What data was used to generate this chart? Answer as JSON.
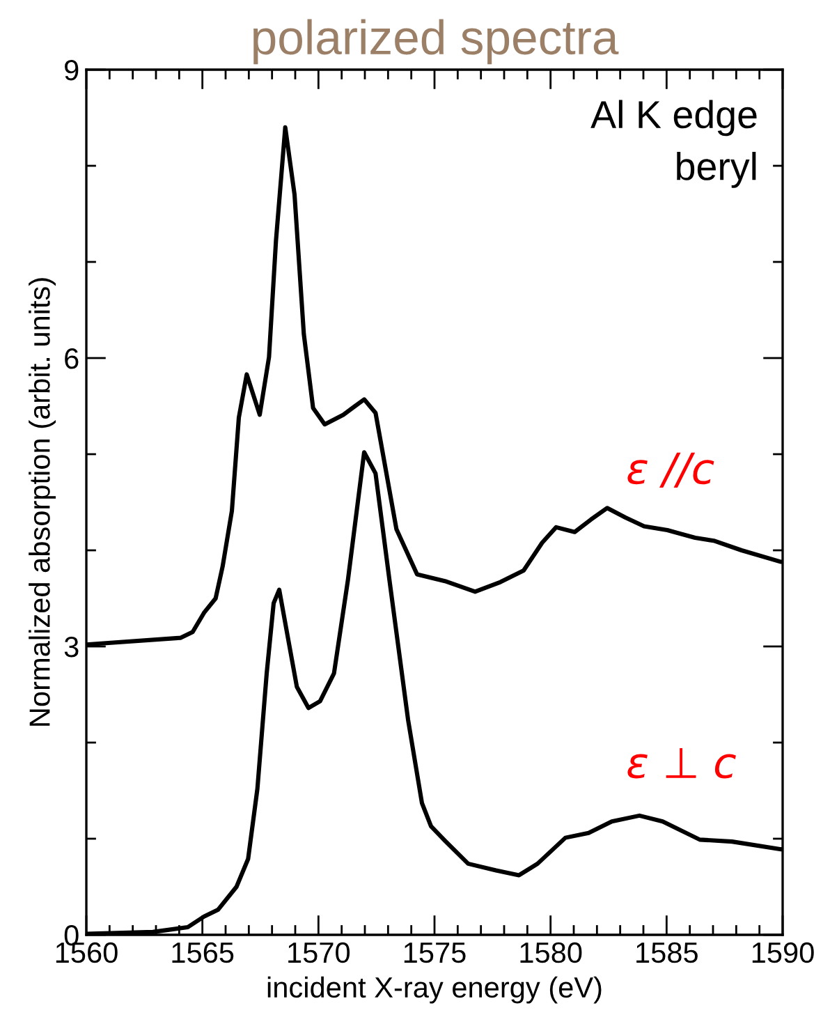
{
  "chart_data": {
    "type": "line",
    "title": "polarized spectra",
    "xlabel": "incident X-ray energy (eV)",
    "ylabel": "Normalized absorption (arbit. units)",
    "annotations": [
      "Al K edge",
      "beryl",
      "ε //c",
      "ε ⊥ c"
    ],
    "series": [
      {
        "color": "#000000",
        "x": [
          1560,
          1564.07,
          1564.58,
          1565.07,
          1565.57,
          1565.87,
          1566.27,
          1566.57,
          1566.91,
          1567.47,
          1567.87,
          1568.17,
          1568.57,
          1568.97,
          1569.37,
          1569.77,
          1570.27,
          1571.07,
          1571.97,
          1572.46,
          1573.36,
          1574.25,
          1575.45,
          1576.75,
          1577.84,
          1578.84,
          1579.64,
          1580.24,
          1581.04,
          1581.74,
          1582.44,
          1583.23,
          1584.03,
          1585.03,
          1586.23,
          1587.03,
          1588.23,
          1589.93,
          1590
        ],
        "values": [
          3.02,
          3.09,
          3.15,
          3.35,
          3.5,
          3.83,
          4.41,
          5.38,
          5.83,
          5.41,
          6.01,
          7.22,
          8.4,
          7.7,
          6.25,
          5.48,
          5.31,
          5.41,
          5.57,
          5.43,
          4.22,
          3.75,
          3.68,
          3.57,
          3.67,
          3.79,
          4.08,
          4.24,
          4.19,
          4.32,
          4.44,
          4.34,
          4.25,
          4.21,
          4.13,
          4.1,
          4.0,
          3.88,
          3.88
        ]
      },
      {
        "color": "#000000",
        "x": [
          1560,
          1562.87,
          1564.37,
          1565.07,
          1565.67,
          1566.47,
          1566.97,
          1567.37,
          1567.77,
          1568.07,
          1568.31,
          1568.67,
          1569.07,
          1569.57,
          1570.07,
          1570.67,
          1571.27,
          1571.97,
          1572.46,
          1573.06,
          1573.86,
          1574.46,
          1574.85,
          1575.45,
          1576.45,
          1577.65,
          1578.64,
          1579.44,
          1580.64,
          1581.64,
          1582.64,
          1583.83,
          1584.83,
          1586.43,
          1587.82,
          1589.93,
          1590
        ],
        "values": [
          0.01,
          0.03,
          0.08,
          0.19,
          0.26,
          0.5,
          0.79,
          1.52,
          2.72,
          3.45,
          3.59,
          3.11,
          2.58,
          2.36,
          2.43,
          2.72,
          3.69,
          5.02,
          4.8,
          3.69,
          2.24,
          1.37,
          1.13,
          0.98,
          0.74,
          0.67,
          0.62,
          0.74,
          1.01,
          1.06,
          1.18,
          1.24,
          1.18,
          0.99,
          0.97,
          0.89,
          0.89
        ]
      }
    ],
    "xlim": [
      1560,
      1590
    ],
    "ylim": [
      0,
      9
    ],
    "xticks": [
      1560,
      {
        "value": 1561,
        "label": null
      },
      {
        "value": 1562,
        "label": null
      },
      {
        "value": 1563,
        "label": null
      },
      {
        "value": 1564,
        "label": null
      },
      1565,
      {
        "value": 1566,
        "label": null
      },
      {
        "value": 1567,
        "label": null
      },
      {
        "value": 1568,
        "label": null
      },
      {
        "value": 1569,
        "label": null
      },
      1570,
      {
        "value": 1571,
        "label": null
      },
      {
        "value": 1572,
        "label": null
      },
      {
        "value": 1573,
        "label": null
      },
      {
        "value": 1574,
        "label": null
      },
      1575,
      {
        "value": 1576,
        "label": null
      },
      {
        "value": 1577,
        "label": null
      },
      {
        "value": 1578,
        "label": null
      },
      {
        "value": 1579,
        "label": null
      },
      1580,
      {
        "value": 1581,
        "label": null
      },
      {
        "value": 1582,
        "label": null
      },
      {
        "value": 1583,
        "label": null
      },
      {
        "value": 1584,
        "label": null
      },
      1585,
      {
        "value": 1586,
        "label": null
      },
      {
        "value": 1587,
        "label": null
      },
      {
        "value": 1588,
        "label": null
      },
      {
        "value": 1589,
        "label": null
      },
      1590
    ],
    "yticks": [
      0,
      {
        "value": 1,
        "label": null
      },
      {
        "value": 2,
        "label": null
      },
      3,
      {
        "value": 4,
        "label": null
      },
      {
        "value": 5,
        "label": null
      },
      6,
      {
        "value": 7,
        "label": null
      },
      {
        "value": 8,
        "label": null
      },
      9
    ],
    "grid": false,
    "marker": "none",
    "line_style": "solid"
  }
}
